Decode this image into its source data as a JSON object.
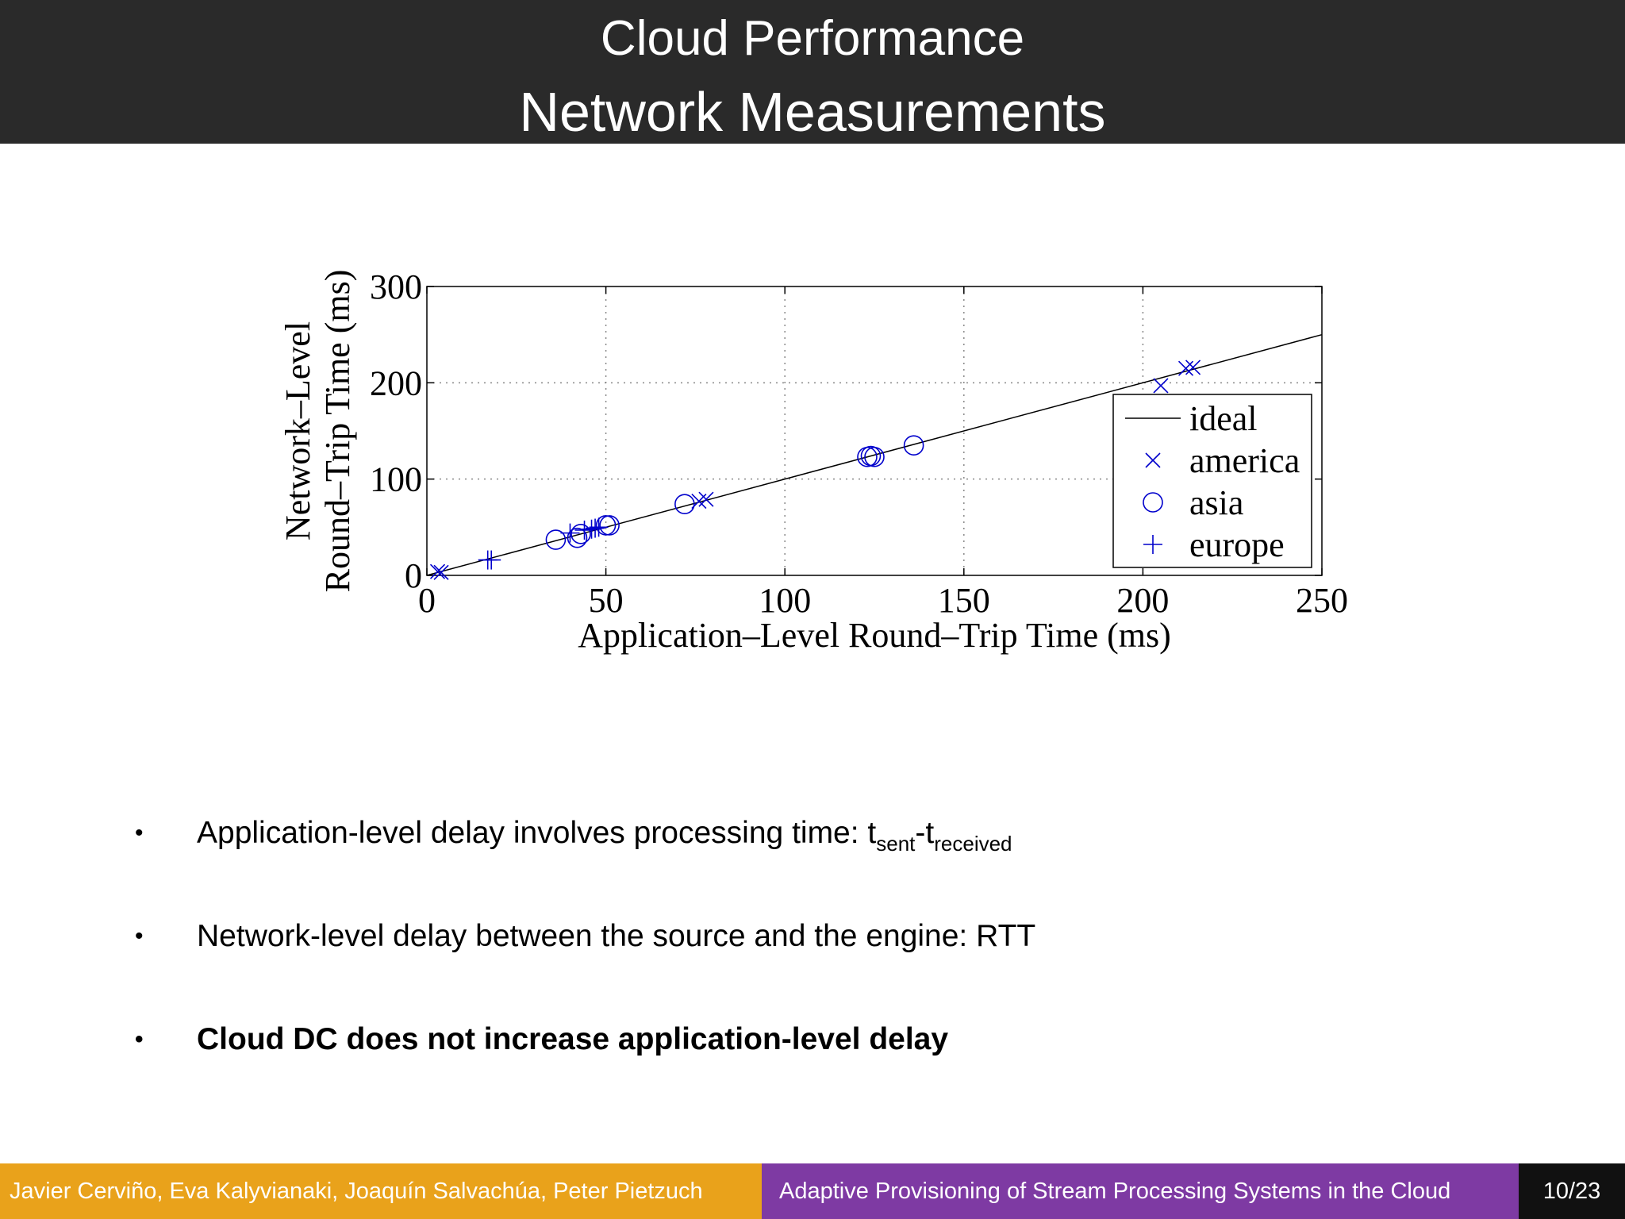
{
  "slide": {
    "title_line1": "Cloud Performance",
    "title_line2": "Network Measurements"
  },
  "bullets": [
    {
      "text": "Application-level delay involves processing time: t",
      "sub1": "sent",
      "mid": "-t",
      "sub2": "received"
    },
    {
      "text": "Network-level delay between the source and the engine: RTT"
    },
    {
      "text": "Cloud DC does not increase application-level delay"
    }
  ],
  "bullet_symbol": "•",
  "footer": {
    "authors": "Javier Cerviño, Eva Kalyvianaki, Joaquín Salvachúa, Peter Pietzuch",
    "talk_title": "Adaptive Provisioning of Stream Processing Systems in the Cloud",
    "page": "10/23"
  },
  "colors": {
    "title_bar": "#2a2a2a",
    "footer_authors": "#e9a21b",
    "footer_talk": "#7e3aa3",
    "footer_page": "#111111",
    "marker": "#0000cc"
  },
  "chart_data": {
    "type": "scatter",
    "xlabel": "Application–Level Round–Trip Time (ms)",
    "ylabel_line1": "Network–Level",
    "ylabel_line2": "Round–Trip Time (ms)",
    "xlim": [
      0,
      250
    ],
    "ylim": [
      0,
      300
    ],
    "xticks": [
      0,
      50,
      100,
      150,
      200,
      250
    ],
    "yticks": [
      0,
      100,
      200,
      300
    ],
    "grid": true,
    "legend_position": "lower-right",
    "ideal": {
      "name": "ideal",
      "points": [
        [
          0,
          0
        ],
        [
          250,
          250
        ]
      ]
    },
    "series": [
      {
        "name": "america",
        "marker": "x",
        "points": [
          [
            3,
            4
          ],
          [
            4,
            3
          ],
          [
            76,
            77
          ],
          [
            78,
            79
          ],
          [
            205,
            197
          ],
          [
            212,
            215
          ],
          [
            214,
            216
          ]
        ]
      },
      {
        "name": "asia",
        "marker": "o",
        "points": [
          [
            36,
            37
          ],
          [
            42,
            39
          ],
          [
            43,
            43
          ],
          [
            50,
            52
          ],
          [
            51,
            52
          ],
          [
            72,
            74
          ],
          [
            123,
            123
          ],
          [
            124,
            124
          ],
          [
            125,
            123
          ],
          [
            136,
            135
          ]
        ]
      },
      {
        "name": "europe",
        "marker": "+",
        "points": [
          [
            17,
            16
          ],
          [
            18,
            16
          ],
          [
            40,
            44
          ],
          [
            44,
            47
          ],
          [
            46,
            48
          ],
          [
            47,
            49
          ],
          [
            48,
            50
          ]
        ]
      }
    ]
  }
}
